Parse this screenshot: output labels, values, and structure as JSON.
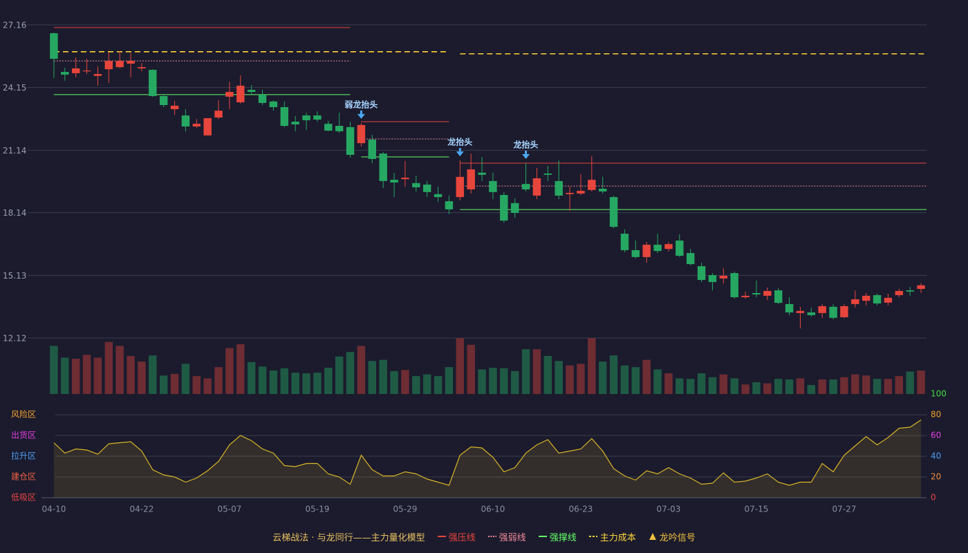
{
  "chart_data": [
    {
      "type": "candlestick",
      "caption": "云梯战法 · 与龙同行——主力量化模型",
      "categories": [
        "04-10",
        null,
        null,
        null,
        null,
        null,
        null,
        null,
        "04-22",
        null,
        null,
        null,
        null,
        null,
        null,
        null,
        "05-07",
        null,
        null,
        null,
        null,
        null,
        null,
        null,
        "05-19",
        null,
        null,
        null,
        null,
        null,
        null,
        null,
        "05-29",
        null,
        null,
        null,
        null,
        null,
        null,
        null,
        "06-10",
        null,
        null,
        null,
        null,
        null,
        null,
        null,
        "06-23",
        null,
        null,
        null,
        null,
        null,
        null,
        null,
        "07-03",
        null,
        null,
        null,
        null,
        null,
        null,
        null,
        "07-15",
        null,
        null,
        null,
        null,
        null,
        null,
        null,
        "07-27",
        null,
        null,
        null,
        null,
        null,
        null,
        null
      ],
      "open": [
        26.76,
        24.9,
        24.84,
        24.93,
        24.71,
        25.03,
        25.13,
        25.3,
        25.07,
        25.0,
        23.74,
        23.11,
        22.81,
        22.28,
        21.85,
        22.71,
        23.71,
        23.44,
        24.04,
        23.81,
        23.48,
        23.21,
        22.51,
        22.81,
        22.81,
        22.41,
        22.31,
        22.25,
        21.48,
        21.65,
        20.98,
        19.72,
        19.75,
        19.56,
        19.49,
        19.03,
        18.69,
        18.89,
        19.26,
        20.06,
        19.66,
        18.99,
        18.6,
        19.52,
        18.96,
        20.02,
        19.66,
        19.03,
        19.06,
        19.23,
        19.29,
        18.89,
        17.13,
        16.34,
        16.01,
        16.6,
        16.4,
        16.8,
        16.2,
        15.57,
        15.14,
        14.98,
        15.24,
        14.08,
        14.28,
        14.15,
        14.41,
        13.75,
        13.32,
        13.35,
        13.32,
        13.62,
        13.12,
        13.75,
        13.91,
        14.18,
        13.82,
        14.18,
        14.41,
        14.48
      ],
      "high": [
        26.79,
        25.1,
        25.6,
        25.53,
        25.17,
        25.83,
        25.9,
        25.8,
        25.33,
        25.03,
        23.81,
        23.51,
        23.11,
        22.64,
        22.68,
        23.54,
        24.44,
        24.74,
        24.27,
        24.04,
        23.54,
        23.48,
        22.78,
        22.94,
        23.01,
        22.55,
        22.94,
        22.51,
        22.45,
        21.88,
        21.05,
        20.05,
        20.62,
        19.92,
        19.66,
        19.39,
        18.96,
        20.65,
        20.98,
        20.82,
        20.06,
        19.13,
        18.83,
        20.52,
        20.29,
        20.39,
        20.65,
        19.39,
        19.99,
        20.85,
        19.86,
        18.96,
        17.33,
        16.8,
        16.73,
        17.13,
        16.73,
        17.1,
        16.4,
        15.74,
        15.24,
        15.47,
        15.31,
        14.35,
        14.88,
        14.55,
        14.51,
        14.08,
        13.62,
        13.58,
        13.75,
        13.75,
        13.75,
        14.41,
        14.28,
        14.25,
        14.25,
        14.48,
        14.58,
        14.75
      ],
      "low": [
        24.6,
        24.47,
        24.64,
        24.8,
        24.24,
        24.37,
        25.07,
        24.64,
        24.93,
        23.7,
        23.21,
        22.84,
        22.05,
        22.21,
        21.85,
        22.64,
        23.11,
        23.38,
        23.84,
        23.31,
        23.04,
        22.25,
        22.05,
        22.11,
        22.51,
        22.05,
        21.98,
        20.79,
        21.32,
        20.52,
        19.32,
        18.89,
        19.39,
        19.16,
        18.89,
        18.66,
        18.07,
        18.73,
        19.06,
        19.66,
        18.79,
        17.66,
        17.9,
        19.16,
        18.79,
        19.66,
        18.79,
        18.23,
        18.99,
        19.16,
        19.06,
        17.4,
        16.24,
        15.94,
        15.74,
        16.2,
        16.27,
        16.01,
        15.61,
        14.81,
        14.41,
        14.74,
        14.01,
        14.01,
        14.08,
        13.94,
        13.75,
        13.22,
        12.58,
        13.15,
        13.08,
        13.02,
        13.08,
        13.58,
        13.68,
        13.68,
        13.68,
        14.08,
        14.15,
        14.28
      ],
      "close": [
        25.53,
        24.77,
        25.07,
        24.97,
        24.8,
        25.43,
        25.43,
        25.43,
        25.13,
        23.74,
        23.31,
        23.28,
        22.28,
        22.41,
        22.68,
        23.04,
        23.94,
        24.24,
        23.94,
        23.41,
        23.21,
        22.31,
        22.38,
        22.58,
        22.61,
        22.08,
        22.05,
        20.92,
        22.35,
        20.72,
        19.66,
        19.59,
        19.82,
        19.36,
        19.13,
        18.89,
        18.3,
        19.86,
        20.22,
        19.96,
        19.13,
        17.76,
        18.13,
        19.26,
        19.79,
        19.96,
        18.96,
        19.09,
        19.19,
        19.72,
        19.16,
        17.46,
        16.34,
        16.01,
        16.6,
        16.3,
        16.63,
        16.07,
        15.67,
        14.91,
        14.81,
        15.11,
        14.08,
        14.15,
        14.21,
        14.38,
        13.81,
        13.35,
        13.42,
        13.22,
        13.65,
        13.09,
        13.65,
        13.98,
        14.15,
        13.78,
        14.05,
        14.38,
        14.35,
        14.65
      ],
      "up_color": "#e8453c",
      "down_color": "#26a862",
      "ylim": [
        12.12,
        27.16
      ],
      "yticks": [
        12.12,
        15.13,
        18.14,
        21.14,
        24.15,
        27.16
      ],
      "grid": true,
      "lines": [
        {
          "name": "强压线",
          "color": "#e8453c",
          "style": "solid",
          "segments": [
            {
              "from": 0,
              "to": 27,
              "value": 27.03
            },
            {
              "from": 28,
              "to": 36,
              "value": 22.51
            },
            {
              "from": 37,
              "to": 79,
              "value": 20.52
            }
          ]
        },
        {
          "name": "强弱线",
          "color": "#f08a9a",
          "style": "dotted",
          "segments": [
            {
              "from": 0,
              "to": 27,
              "value": 25.43
            },
            {
              "from": 28,
              "to": 36,
              "value": 21.68
            },
            {
              "from": 37,
              "to": 79,
              "value": 19.42
            }
          ]
        },
        {
          "name": "强撑线",
          "color": "#66ff66",
          "style": "solid",
          "segments": [
            {
              "from": 0,
              "to": 27,
              "value": 23.81
            },
            {
              "from": 28,
              "to": 36,
              "value": 20.82
            },
            {
              "from": 37,
              "to": 79,
              "value": 18.29
            }
          ]
        },
        {
          "name": "主力成本",
          "color": "#ffd43b",
          "style": "dashed",
          "segments": [
            {
              "from": 0,
              "to": 36,
              "value": 25.87
            },
            {
              "from": 37,
              "to": 79,
              "value": 25.77
            }
          ]
        }
      ],
      "signals": {
        "name": "龙吟信号",
        "color": "#f0c040",
        "arrow_color": "#4aa8f0",
        "label_color": "#a8d4ff",
        "items": [
          {
            "index": 28,
            "label": "弱龙抬头"
          },
          {
            "index": 37,
            "label": "龙抬头"
          },
          {
            "index": 43,
            "label": "龙抬头"
          }
        ]
      }
    },
    {
      "type": "bar",
      "values": [
        86,
        65,
        63,
        70,
        65,
        93,
        86,
        68,
        58,
        69,
        33,
        36,
        54,
        32,
        28,
        48,
        82,
        89,
        57,
        49,
        42,
        46,
        38,
        37,
        38,
        47,
        67,
        75,
        86,
        59,
        61,
        41,
        43,
        32,
        35,
        32,
        48,
        100,
        88,
        44,
        47,
        46,
        41,
        80,
        80,
        68,
        59,
        51,
        54,
        100,
        58,
        69,
        51,
        48,
        61,
        44,
        37,
        28,
        27,
        37,
        30,
        35,
        28,
        17,
        21,
        19,
        27,
        26,
        28,
        16,
        26,
        26,
        30,
        35,
        33,
        27,
        27,
        32,
        40,
        42
      ],
      "ylim": [
        0,
        100
      ],
      "up_color": "#6e2c33",
      "down_color": "#1f5a45"
    },
    {
      "type": "line",
      "values": [
        53,
        43,
        47,
        46,
        42,
        52,
        53,
        54,
        45,
        27,
        22,
        20,
        15,
        19,
        26,
        35,
        51,
        60,
        55,
        47,
        43,
        31,
        30,
        33,
        33,
        23,
        20,
        13,
        41,
        27,
        21,
        21,
        25,
        23,
        18,
        15,
        12,
        41,
        49,
        48,
        39,
        25,
        29,
        43,
        51,
        56,
        43,
        45,
        47,
        57,
        45,
        28,
        21,
        17,
        26,
        23,
        29,
        23,
        19,
        13,
        14,
        24,
        15,
        16,
        19,
        23,
        15,
        12,
        15,
        15,
        33,
        25,
        41,
        50,
        59,
        51,
        58,
        67,
        68,
        75
      ],
      "color": "#d9b526",
      "ylim": [
        0,
        100
      ],
      "yticks": [
        0,
        20,
        40,
        60,
        80,
        100
      ],
      "ytick_colors": [
        "#e84545",
        "#f08a3c",
        "#4a9cf0",
        "#e040e0",
        "#f0a030",
        "#44dd44"
      ],
      "zones": [
        {
          "label": "风险区",
          "value": 80,
          "color": "#f0a030"
        },
        {
          "label": "出货区",
          "value": 60,
          "color": "#e040e0"
        },
        {
          "label": "拉升区",
          "value": 40,
          "color": "#4a9cf0"
        },
        {
          "label": "建仓区",
          "value": 20,
          "color": "#f06040"
        },
        {
          "label": "低吸区",
          "value": 0,
          "color": "#e84545"
        }
      ]
    }
  ]
}
